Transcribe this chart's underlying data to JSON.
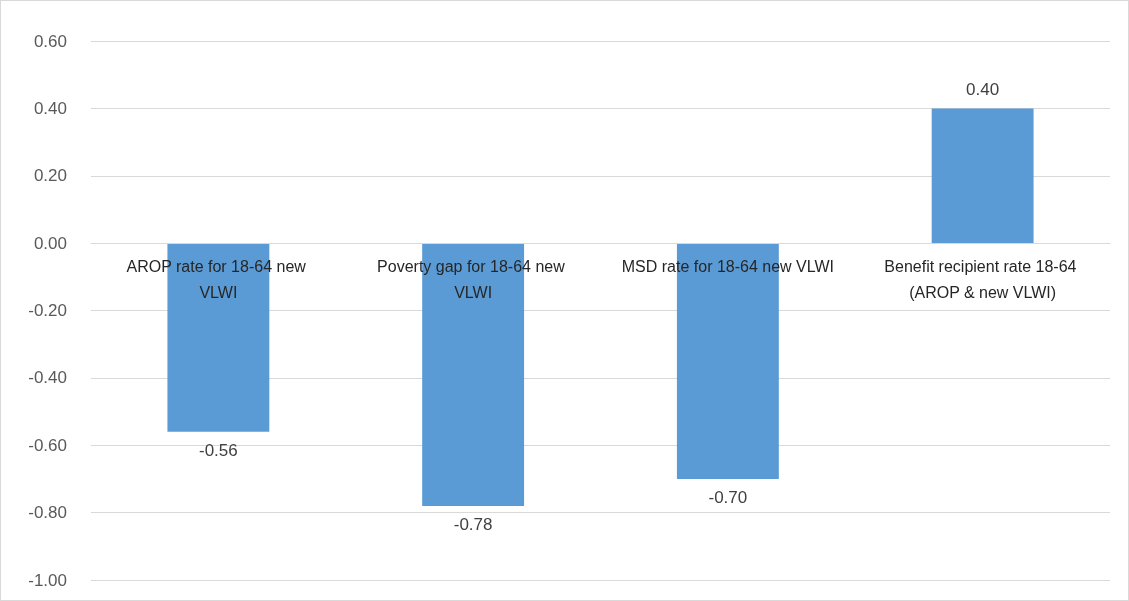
{
  "chart_data": {
    "type": "bar",
    "categories": [
      "AROP rate for 18-64 new VLWI",
      "Poverty gap for 18-64 new VLWI",
      "MSD rate for 18-64 new VLWI",
      "Benefit recipient rate 18-64 (AROP & new VLWI)"
    ],
    "values": [
      -0.56,
      -0.78,
      -0.7,
      0.4
    ],
    "value_labels": [
      "-0.56",
      "-0.78",
      "-0.70",
      "0.40"
    ],
    "color": "#5b9bd5",
    "ylim": [
      -1,
      0.6
    ],
    "yticks": [
      {
        "value": -1,
        "label": "-1.00"
      },
      {
        "value": -0.8,
        "label": "-0.80"
      },
      {
        "value": -0.6,
        "label": "-0.60"
      },
      {
        "value": -0.4,
        "label": "-0.40"
      },
      {
        "value": -0.2,
        "label": "-0.20"
      },
      {
        "value": 0,
        "label": "0.00"
      },
      {
        "value": 0.2,
        "label": "0.20"
      },
      {
        "value": 0.4,
        "label": "0.40"
      },
      {
        "value": 0.6,
        "label": "0.60"
      }
    ],
    "grid": "y"
  }
}
